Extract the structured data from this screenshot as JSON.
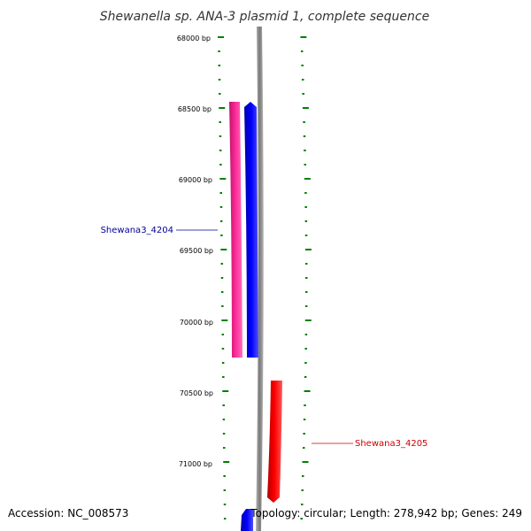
{
  "title": "Shewanella sp. ANA-3 plasmid 1, complete sequence",
  "footer": {
    "accession": "Accession: NC_008573",
    "topology": "Topology: circular; Length: 278,942 bp; Genes: 249"
  },
  "colors": {
    "backbone": "#8c8c8c",
    "tick": "#008000",
    "forward_gene": "#0000ff",
    "reverse_gene": "#ff0000",
    "cds": "#ff1493",
    "label_forward": "#000099",
    "label_reverse": "#cc0000"
  },
  "axis": {
    "start_bp": 68000,
    "end_bp": 71400,
    "major_every_bp": 500,
    "minor_every_bp": 100,
    "labels": [
      "68000 bp",
      "68500 bp",
      "69000 bp",
      "69500 bp",
      "70000 bp",
      "70500 bp",
      "71000 bp"
    ]
  },
  "features": [
    {
      "name": "Shewana3_4204",
      "type": "CDS",
      "strand": "forward",
      "start_bp": 68450,
      "end_bp": 70250,
      "color": "#ff1493"
    },
    {
      "name": "Shewana3_4204",
      "type": "gene",
      "strand": "forward",
      "start_bp": 68450,
      "end_bp": 70250,
      "color": "#0000ff"
    },
    {
      "name": "Shewana3_4205",
      "type": "gene",
      "strand": "reverse",
      "start_bp": 70400,
      "end_bp": 71280,
      "color": "#ff0000"
    },
    {
      "name": "",
      "type": "gene",
      "strand": "forward",
      "start_bp": 71330,
      "end_bp": 71400,
      "color": "#0000ff"
    }
  ],
  "gene_labels": [
    {
      "text": "Shewana3_4204",
      "color": "#000099",
      "side": "left",
      "at_bp": 69350
    },
    {
      "text": "Shewana3_4205",
      "color": "#cc0000",
      "side": "right",
      "at_bp": 70850
    }
  ]
}
